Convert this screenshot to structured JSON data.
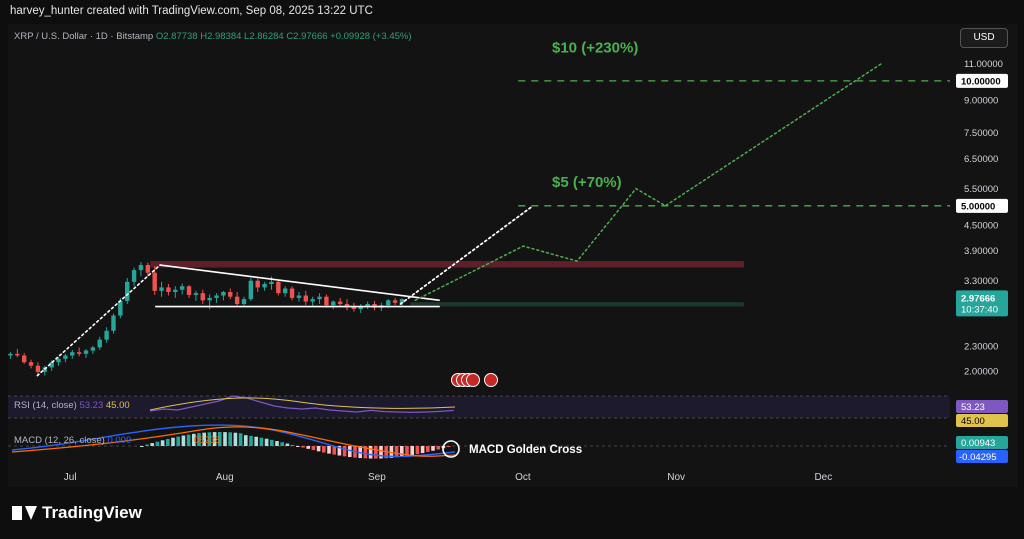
{
  "header": {
    "credit": "harvey_hunter created with TradingView.com, Sep 08, 2025 13:22 UTC"
  },
  "legend": {
    "symbol": "XRP / U.S. Dollar · 1D · Bitstamp",
    "ohlc": "O2.87738  H2.98384  L2.86284  C2.97666  +0.09928 (+3.45%)"
  },
  "currency_button": "USD",
  "brand": "TradingView",
  "colors": {
    "up": "#26a69a",
    "down": "#ef5350",
    "target": "#4caf50",
    "resistance_zone": "#7a2430",
    "support_zone": "#1f3b33",
    "rsi": "#7e57c2"
  },
  "annotations": {
    "target_high": "$10 (+230%)",
    "target_mid": "$5 (+70%)",
    "macd_note": "MACD Golden Cross"
  },
  "rsi": {
    "label": "RSI (14, close)",
    "value": "53.23",
    "ma_value": "45.00"
  },
  "macd": {
    "label": "MACD (12, 26, close)",
    "hist_value": "0.00943",
    "signal_value": "-0.04295",
    "legend_partial_1": "0.009",
    "legend_partial_2": "05238"
  },
  "chart_data": {
    "type": "line",
    "title": "XRP / U.S. Dollar · 1D · Bitstamp",
    "log_scale": true,
    "ylim": [
      1.8,
      12.0
    ],
    "x_tick_labels": [
      "Jul",
      "Aug",
      "Sep",
      "Oct",
      "Nov",
      "Dec"
    ],
    "y_tick_labels": [
      "11.00000",
      "9.00000",
      "7.50000",
      "6.50000",
      "5.50000",
      "4.50000",
      "3.90000",
      "3.30000",
      "2.30000",
      "2.00000"
    ],
    "price_label": {
      "value": "2.97666",
      "countdown": "10:37:40"
    },
    "target_levels": [
      {
        "label": "10.00000",
        "value": 10.0
      },
      {
        "label": "5.00000",
        "value": 5.0
      }
    ],
    "candles": [
      [
        2.18,
        2.22,
        2.14,
        2.2
      ],
      [
        2.2,
        2.26,
        2.16,
        2.18
      ],
      [
        2.18,
        2.21,
        2.08,
        2.1
      ],
      [
        2.1,
        2.13,
        2.03,
        2.06
      ],
      [
        2.06,
        2.1,
        1.96,
        1.99
      ],
      [
        1.99,
        2.06,
        1.95,
        2.04
      ],
      [
        2.04,
        2.12,
        2.0,
        2.1
      ],
      [
        2.1,
        2.16,
        2.06,
        2.14
      ],
      [
        2.14,
        2.2,
        2.1,
        2.18
      ],
      [
        2.18,
        2.25,
        2.14,
        2.22
      ],
      [
        2.22,
        2.28,
        2.17,
        2.2
      ],
      [
        2.2,
        2.26,
        2.15,
        2.24
      ],
      [
        2.24,
        2.3,
        2.2,
        2.28
      ],
      [
        2.28,
        2.42,
        2.25,
        2.38
      ],
      [
        2.38,
        2.55,
        2.34,
        2.5
      ],
      [
        2.5,
        2.75,
        2.46,
        2.72
      ],
      [
        2.72,
        3.0,
        2.68,
        2.95
      ],
      [
        2.95,
        3.35,
        2.9,
        3.28
      ],
      [
        3.28,
        3.55,
        3.2,
        3.5
      ],
      [
        3.5,
        3.66,
        3.38,
        3.6
      ],
      [
        3.6,
        3.65,
        3.38,
        3.45
      ],
      [
        3.45,
        3.58,
        3.05,
        3.12
      ],
      [
        3.12,
        3.28,
        3.02,
        3.18
      ],
      [
        3.18,
        3.24,
        3.04,
        3.1
      ],
      [
        3.1,
        3.2,
        3.0,
        3.14
      ],
      [
        3.14,
        3.25,
        3.06,
        3.2
      ],
      [
        3.2,
        3.22,
        3.0,
        3.05
      ],
      [
        3.05,
        3.12,
        2.95,
        3.08
      ],
      [
        3.08,
        3.14,
        2.9,
        2.96
      ],
      [
        2.96,
        3.06,
        2.82,
        3.0
      ],
      [
        3.0,
        3.08,
        2.92,
        3.04
      ],
      [
        3.04,
        3.12,
        2.96,
        3.1
      ],
      [
        3.1,
        3.16,
        2.98,
        3.02
      ],
      [
        3.02,
        3.1,
        2.86,
        2.9
      ],
      [
        2.9,
        3.02,
        2.85,
        2.98
      ],
      [
        2.98,
        3.35,
        2.95,
        3.3
      ],
      [
        3.3,
        3.34,
        3.1,
        3.18
      ],
      [
        3.18,
        3.28,
        3.12,
        3.24
      ],
      [
        3.24,
        3.38,
        3.14,
        3.28
      ],
      [
        3.28,
        3.32,
        3.04,
        3.08
      ],
      [
        3.08,
        3.2,
        3.02,
        3.16
      ],
      [
        3.16,
        3.2,
        2.96,
        3.0
      ],
      [
        3.0,
        3.1,
        2.94,
        3.04
      ],
      [
        3.04,
        3.12,
        2.88,
        2.94
      ],
      [
        2.94,
        3.02,
        2.86,
        2.98
      ],
      [
        2.98,
        3.08,
        2.9,
        3.02
      ],
      [
        3.02,
        3.06,
        2.84,
        2.88
      ],
      [
        2.88,
        2.96,
        2.82,
        2.94
      ],
      [
        2.94,
        3.0,
        2.86,
        2.9
      ],
      [
        2.9,
        2.98,
        2.8,
        2.86
      ],
      [
        2.86,
        2.92,
        2.78,
        2.82
      ],
      [
        2.82,
        2.9,
        2.76,
        2.86
      ],
      [
        2.86,
        2.94,
        2.82,
        2.9
      ],
      [
        2.9,
        2.95,
        2.8,
        2.84
      ],
      [
        2.84,
        2.92,
        2.79,
        2.88
      ],
      [
        2.88,
        2.98,
        2.84,
        2.96
      ],
      [
        2.96,
        3.0,
        2.88,
        2.92
      ],
      [
        2.92,
        2.99,
        2.87,
        2.98
      ]
    ],
    "candle_start_date": "2025-06-18",
    "candle_spacing_days": 1.4,
    "triangle": {
      "upper": [
        [
          "2025-07-19",
          3.6
        ],
        [
          "2025-09-14",
          2.96
        ]
      ],
      "lower": [
        [
          "2025-07-18",
          2.86
        ],
        [
          "2025-09-14",
          2.86
        ]
      ]
    },
    "resistance_zone": {
      "from": "2025-07-17",
      "to": "2025-11-15",
      "y_low": 3.55,
      "y_high": 3.68
    },
    "support_zone": {
      "from": "2025-09-08",
      "to": "2025-11-15",
      "y_low": 2.86,
      "y_high": 2.93
    },
    "rally_path": [
      [
        "2025-06-24",
        1.95
      ],
      [
        "2025-07-19",
        3.6
      ]
    ],
    "projection_white": [
      [
        "2025-09-06",
        2.9
      ],
      [
        "2025-10-03",
        5.0
      ]
    ],
    "projection_green": [
      [
        "2025-09-09",
        2.96
      ],
      [
        "2025-10-01",
        4.0
      ],
      [
        "2025-10-12",
        3.68
      ],
      [
        "2025-10-24",
        5.5
      ],
      [
        "2025-10-30",
        5.0
      ],
      [
        "2025-12-13",
        11.0
      ]
    ]
  }
}
